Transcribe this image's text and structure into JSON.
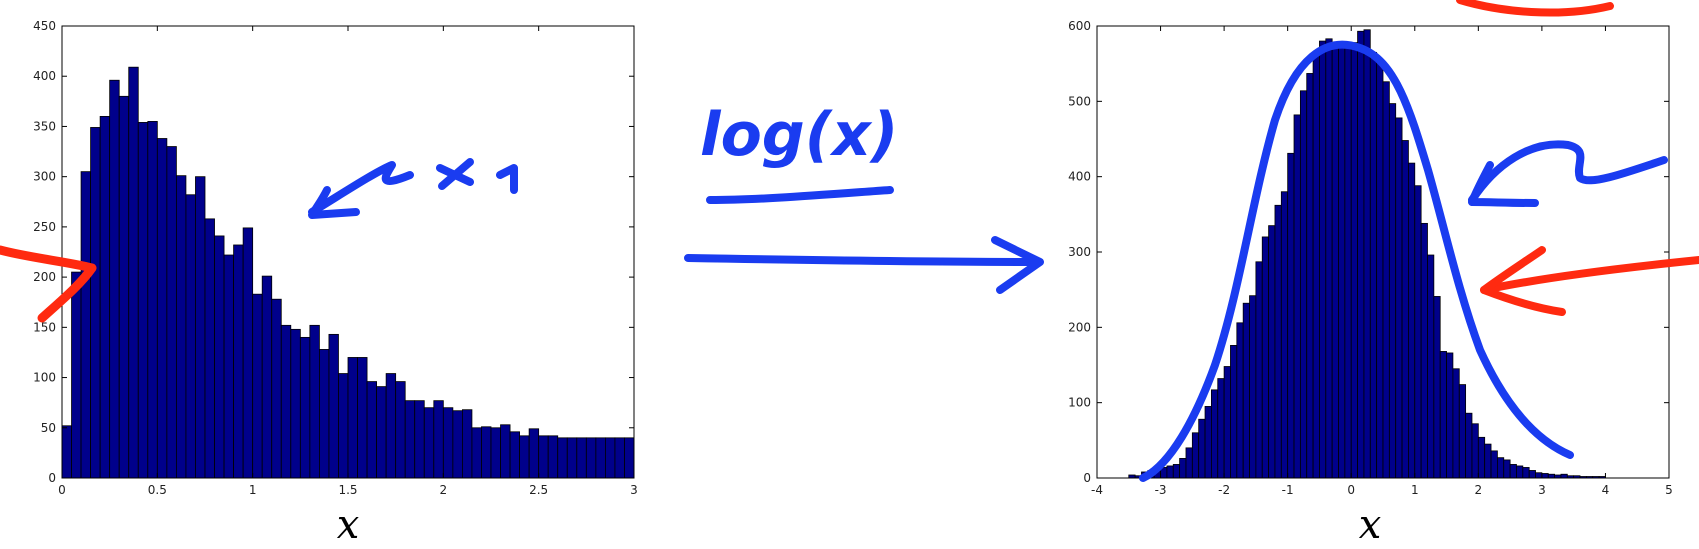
{
  "chart_data": [
    {
      "type": "bar",
      "title": "",
      "xlabel": "x",
      "ylabel": "",
      "xlim": [
        0,
        3
      ],
      "ylim": [
        0,
        450
      ],
      "xticks": [
        "0",
        "0.5",
        "1",
        "1.5",
        "2",
        "2.5",
        "3"
      ],
      "yticks": [
        "0",
        "50",
        "100",
        "150",
        "200",
        "250",
        "300",
        "350",
        "400",
        "450"
      ],
      "bin_width": 0.05,
      "x": [
        0.025,
        0.075,
        0.125,
        0.175,
        0.225,
        0.275,
        0.325,
        0.375,
        0.425,
        0.475,
        0.525,
        0.575,
        0.625,
        0.675,
        0.725,
        0.775,
        0.825,
        0.875,
        0.925,
        0.975,
        1.025,
        1.075,
        1.125,
        1.175,
        1.225,
        1.275,
        1.325,
        1.375,
        1.425,
        1.475,
        1.525,
        1.575,
        1.625,
        1.675,
        1.725,
        1.775,
        1.825,
        1.875,
        1.925,
        1.975,
        2.025,
        2.075,
        2.125,
        2.175,
        2.225,
        2.275,
        2.325,
        2.375,
        2.425,
        2.475,
        2.525,
        2.575,
        2.625,
        2.675,
        2.725,
        2.775,
        2.825,
        2.875,
        2.925,
        2.975
      ],
      "values": [
        52,
        205,
        305,
        349,
        360,
        396,
        380,
        409,
        354,
        355,
        338,
        330,
        301,
        282,
        300,
        258,
        241,
        222,
        232,
        249,
        183,
        201,
        178,
        152,
        148,
        140,
        152,
        128,
        143,
        104,
        120,
        120,
        96,
        91,
        104,
        96,
        77,
        77,
        70,
        77,
        70,
        67,
        68,
        50,
        51,
        50,
        53,
        46,
        42,
        49,
        42,
        42,
        40,
        40,
        40,
        40,
        40,
        40,
        40,
        40
      ],
      "bar_color": "#00008b",
      "annotation": "x1"
    },
    {
      "type": "bar",
      "title": "",
      "xlabel": "x",
      "ylabel": "",
      "xlim": [
        -4,
        5
      ],
      "ylim": [
        0,
        600
      ],
      "xticks": [
        "-4",
        "-3",
        "-2",
        "-1",
        "0",
        "1",
        "2",
        "3",
        "4",
        "5"
      ],
      "yticks": [
        "0",
        "100",
        "200",
        "300",
        "400",
        "500",
        "600"
      ],
      "bin_width": 0.1,
      "x": [
        -3.45,
        -3.35,
        -3.25,
        -3.15,
        -3.05,
        -2.95,
        -2.85,
        -2.75,
        -2.65,
        -2.55,
        -2.45,
        -2.35,
        -2.25,
        -2.15,
        -2.05,
        -1.95,
        -1.85,
        -1.75,
        -1.65,
        -1.55,
        -1.45,
        -1.35,
        -1.25,
        -1.15,
        -1.05,
        -0.95,
        -0.85,
        -0.75,
        -0.65,
        -0.55,
        -0.45,
        -0.35,
        -0.25,
        -0.15,
        -0.05,
        0.05,
        0.15,
        0.25,
        0.35,
        0.45,
        0.55,
        0.65,
        0.75,
        0.85,
        0.95,
        1.05,
        1.15,
        1.25,
        1.35,
        1.45,
        1.55,
        1.65,
        1.75,
        1.85,
        1.95,
        2.05,
        2.15,
        2.25,
        2.35,
        2.45,
        2.55,
        2.65,
        2.75,
        2.85,
        2.95,
        3.05,
        3.15,
        3.25,
        3.35,
        3.45,
        3.55,
        3.65,
        3.75,
        3.85,
        3.95
      ],
      "values": [
        4,
        3,
        8,
        10,
        9,
        14,
        16,
        18,
        26,
        40,
        60,
        78,
        95,
        117,
        132,
        148,
        176,
        206,
        232,
        242,
        287,
        320,
        335,
        362,
        380,
        431,
        482,
        514,
        537,
        565,
        580,
        583,
        578,
        575,
        574,
        578,
        593,
        595,
        565,
        552,
        526,
        497,
        478,
        448,
        418,
        388,
        338,
        296,
        241,
        168,
        166,
        145,
        124,
        86,
        72,
        54,
        45,
        36,
        27,
        24,
        18,
        16,
        14,
        10,
        7,
        6,
        5,
        4,
        5,
        3,
        3,
        2,
        2,
        2,
        2
      ],
      "bar_color": "#00008b"
    }
  ],
  "transform_label": "log(x)"
}
